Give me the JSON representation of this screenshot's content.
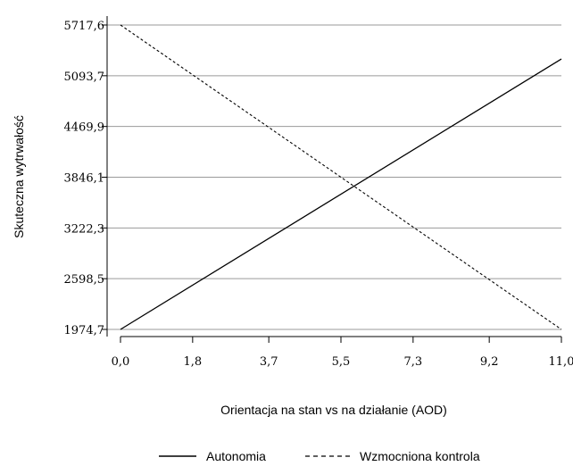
{
  "chart_data": {
    "type": "line",
    "title": "",
    "xlabel": "Orientacja na stan vs na działanie (AOD)",
    "ylabel": "Skuteczna wytrwałość",
    "xlim": [
      0,
      11
    ],
    "ylim": [
      1974.7,
      5717.6
    ],
    "x_tick_labels": [
      "0,0",
      "1,8",
      "3,7",
      "5,5",
      "7,3",
      "9,2",
      "11,0"
    ],
    "x_ticks": [
      0,
      1.8,
      3.7,
      5.5,
      7.3,
      9.2,
      11.0
    ],
    "y_tick_labels": [
      "1974,7",
      "2598,5",
      "3222,3",
      "3846,1",
      "4469,9",
      "5093,7",
      "5717,6"
    ],
    "y_ticks": [
      1974.7,
      2598.5,
      3222.3,
      3846.1,
      4469.9,
      5093.7,
      5717.6
    ],
    "grid": "horizontal",
    "legend_position": "bottom",
    "series": [
      {
        "name": "Autonomia",
        "style": "solid",
        "x": [
          0,
          11
        ],
        "values": [
          1974.7,
          5300
        ]
      },
      {
        "name": "Wzmocniona kontrola",
        "style": "dashed",
        "x": [
          0,
          11
        ],
        "values": [
          5717.6,
          1974.7
        ]
      }
    ],
    "colors": {
      "line": "#000000",
      "grid": "#9a9a9a",
      "axis": "#000000"
    }
  }
}
